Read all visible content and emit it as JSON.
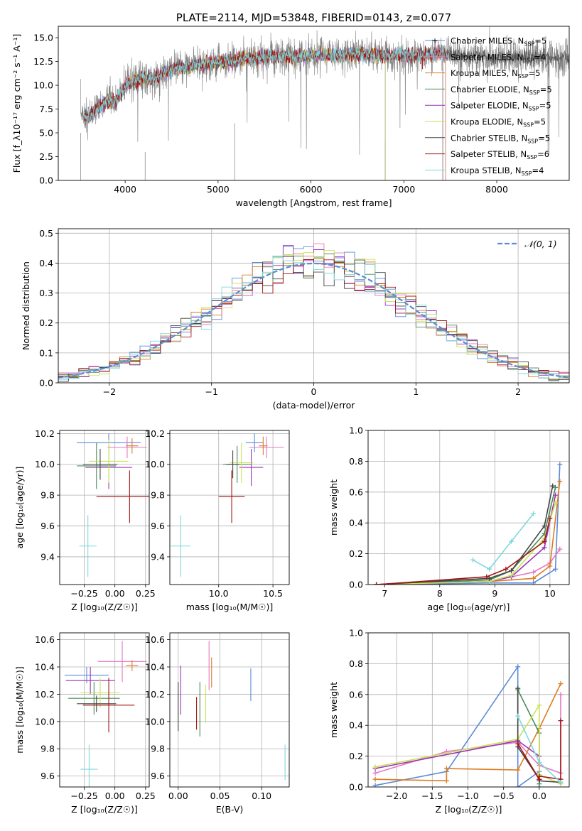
{
  "colors": {
    "Chabrier MILES": "#5b8bd6",
    "Salpeter MILES": "#e377c2",
    "Kroupa MILES": "#dd7c22",
    "Chabrier ELODIE": "#4a8a5a",
    "Salpeter ELODIE": "#9b34b8",
    "Kroupa ELODIE": "#c9e255",
    "Chabrier STELIB": "#444444",
    "Salpeter STELIB": "#a31515",
    "Kroupa STELIB": "#7fd8de",
    "observed": "#808080",
    "normal": "#5b8bd6"
  },
  "chart_data": [
    {
      "id": "spectrum",
      "type": "line",
      "title": "PLATE=2114, MJD=53848, FIBERID=0143, z=0.077",
      "xlabel": "wavelength [Angstrom, rest frame]",
      "ylabel": "Flux [f_λ10⁻¹⁷ erg cm⁻² s⁻¹ A⁻¹]",
      "xlim": [
        3280,
        8780
      ],
      "ylim": [
        0,
        16.2
      ],
      "xticks": [
        "4000",
        "5000",
        "6000",
        "7000",
        "8000"
      ],
      "xtick_values": [
        4000,
        5000,
        6000,
        7000,
        8000
      ],
      "yticks": [
        "0.0",
        "2.5",
        "5.0",
        "7.5",
        "10.0",
        "12.5",
        "15.0"
      ],
      "ytick_values": [
        0,
        2.5,
        5,
        7.5,
        10,
        12.5,
        15
      ],
      "grid": false,
      "legend": "right",
      "continuum": {
        "x": [
          3500,
          3600,
          3700,
          3800,
          3900,
          4000,
          4100,
          4200,
          4300,
          4400,
          4500,
          4700,
          4900,
          5100,
          5300,
          5500,
          5700,
          5900,
          6100,
          6300,
          6500,
          6700,
          6900,
          7100,
          7300,
          7400,
          7600,
          7800,
          8000,
          8200,
          8400,
          8600,
          8780
        ],
        "y": [
          7.3,
          6.6,
          7.5,
          8.2,
          8.4,
          10.0,
          10.5,
          10.8,
          10.6,
          11.2,
          11.7,
          12.0,
          12.3,
          12.5,
          12.8,
          12.9,
          13.0,
          13.1,
          13.2,
          13.2,
          13.3,
          13.2,
          13.2,
          13.2,
          13.2,
          13.3,
          13.2,
          13.0,
          12.9,
          12.9,
          12.9,
          12.9,
          12.9
        ]
      },
      "series": [
        {
          "name": "Chabrier MILES",
          "label_suffix": "=5",
          "marker": "+",
          "xmax": 7450
        },
        {
          "name": "Salpeter MILES",
          "label_suffix": "=4",
          "xmax": 7450
        },
        {
          "name": "Kroupa MILES",
          "label_suffix": "=5",
          "xmax": 7450
        },
        {
          "name": "Chabrier ELODIE",
          "label_suffix": "=5",
          "xmax": 6800
        },
        {
          "name": "Salpeter ELODIE",
          "label_suffix": "=5",
          "xmax": 6800
        },
        {
          "name": "Kroupa ELODIE",
          "label_suffix": "=5",
          "xmax": 6800
        },
        {
          "name": "Chabrier STELIB",
          "label_suffix": "=5",
          "xmax": 8780
        },
        {
          "name": "Salpeter STELIB",
          "label_suffix": "=6",
          "xmax": 7420
        },
        {
          "name": "Kroupa STELIB",
          "label_suffix": "=4",
          "xmax": 7420
        }
      ]
    },
    {
      "id": "residuals",
      "type": "bar",
      "xlabel": "(data-model)/error",
      "ylabel": "Normed distribution",
      "xlim": [
        -2.5,
        2.5
      ],
      "ylim": [
        0,
        0.515
      ],
      "xticks": [
        "−2",
        "−1",
        "0",
        "1",
        "2"
      ],
      "xtick_values": [
        -2,
        -1,
        0,
        1,
        2
      ],
      "yticks": [
        "0.0",
        "0.1",
        "0.2",
        "0.3",
        "0.4",
        "0.5"
      ],
      "ytick_values": [
        0,
        0.1,
        0.2,
        0.3,
        0.4,
        0.5
      ],
      "grid": true,
      "legend": "top-right",
      "normal_label": "𝒩(0, 1)",
      "bin_width": 0.1,
      "bins_start": -2.5
    },
    {
      "id": "age_vs_Z",
      "type": "scatter",
      "xlabel": "Z [log₁₀(Z/Z☉)]",
      "ylabel": "age  [log₁₀(age/yr)]",
      "xlim": [
        -0.45,
        0.28
      ],
      "ylim": [
        9.22,
        10.22
      ],
      "xticks": [
        "−0.25",
        "0.00",
        "0.25"
      ],
      "xtick_values": [
        -0.25,
        0,
        0.25
      ],
      "yticks": [
        "9.4",
        "9.6",
        "9.8",
        "10.0",
        "10.2"
      ],
      "ytick_values": [
        9.4,
        9.6,
        9.8,
        10.0,
        10.2
      ],
      "grid": true,
      "points": [
        {
          "series": "Chabrier MILES",
          "x": -0.05,
          "y": 10.14,
          "xerr": 0.26,
          "yerr": 0.06
        },
        {
          "series": "Salpeter MILES",
          "x": 0.1,
          "y": 10.11,
          "xerr": 0.16,
          "yerr": 0.07
        },
        {
          "series": "Kroupa MILES",
          "x": 0.14,
          "y": 10.12,
          "xerr": 0.05,
          "yerr": 0.05
        },
        {
          "series": "Chabrier ELODIE",
          "x": -0.15,
          "y": 9.99,
          "xerr": 0.16,
          "yerr": 0.15
        },
        {
          "series": "Salpeter ELODIE",
          "x": -0.05,
          "y": 9.98,
          "xerr": 0.19,
          "yerr": 0.14
        },
        {
          "series": "Kroupa ELODIE",
          "x": -0.05,
          "y": 10.02,
          "xerr": 0.16,
          "yerr": 0.14
        },
        {
          "series": "Chabrier STELIB",
          "x": -0.12,
          "y": 10.0,
          "xerr": 0.14,
          "yerr": 0.1
        },
        {
          "series": "Salpeter STELIB",
          "x": 0.12,
          "y": 9.79,
          "xerr": 0.27,
          "yerr": 0.17
        },
        {
          "series": "Kroupa STELIB",
          "x": -0.22,
          "y": 9.47,
          "xerr": 0.07,
          "yerr": 0.2
        }
      ]
    },
    {
      "id": "age_vs_mass",
      "type": "scatter",
      "xlabel": "mass [log₁₀(M/M☉)]",
      "ylabel": "",
      "xlim": [
        9.55,
        10.65
      ],
      "ylim": [
        9.22,
        10.22
      ],
      "xticks": [
        "10.0",
        "10.5"
      ],
      "xtick_values": [
        10.0,
        10.5
      ],
      "yticks": [
        "9.4",
        "9.6",
        "9.8",
        "10.0",
        "10.2"
      ],
      "ytick_values": [
        9.4,
        9.6,
        9.8,
        10.0,
        10.2
      ],
      "grid": true,
      "points": [
        {
          "series": "Chabrier MILES",
          "x": 10.33,
          "y": 10.14,
          "xerr": 0.08,
          "yerr": 0.06
        },
        {
          "series": "Salpeter MILES",
          "x": 10.44,
          "y": 10.11,
          "xerr": 0.16,
          "yerr": 0.07
        },
        {
          "series": "Kroupa MILES",
          "x": 10.41,
          "y": 10.12,
          "xerr": 0.04,
          "yerr": 0.06
        },
        {
          "series": "Chabrier ELODIE",
          "x": 10.17,
          "y": 10.0,
          "xerr": 0.13,
          "yerr": 0.12
        },
        {
          "series": "Salpeter ELODIE",
          "x": 10.3,
          "y": 9.98,
          "xerr": 0.11,
          "yerr": 0.12
        },
        {
          "series": "Kroupa ELODIE",
          "x": 10.21,
          "y": 10.01,
          "xerr": 0.11,
          "yerr": 0.13
        },
        {
          "series": "Chabrier STELIB",
          "x": 10.13,
          "y": 10.0,
          "xerr": 0.06,
          "yerr": 0.09
        },
        {
          "series": "Salpeter STELIB",
          "x": 10.12,
          "y": 9.79,
          "xerr": 0.12,
          "yerr": 0.17
        },
        {
          "series": "Kroupa STELIB",
          "x": 9.65,
          "y": 9.47,
          "xerr": 0.09,
          "yerr": 0.2
        }
      ]
    },
    {
      "id": "mass_weight_vs_age",
      "type": "line",
      "xlabel": "age  [log₁₀(age/yr)]",
      "ylabel": "mass weight",
      "xlim": [
        6.7,
        10.35
      ],
      "ylim": [
        0,
        1.0
      ],
      "xticks": [
        "7",
        "8",
        "9",
        "10"
      ],
      "xtick_values": [
        7,
        8,
        9,
        10
      ],
      "yticks": [
        "0.0",
        "0.2",
        "0.4",
        "0.6",
        "0.8",
        "1.0"
      ],
      "ytick_values": [
        0,
        0.2,
        0.4,
        0.6,
        0.8,
        1.0
      ],
      "grid": true,
      "series": [
        {
          "name": "Chabrier MILES",
          "x": [
            6.85,
            8.9,
            9.7,
            10.1,
            10.18
          ],
          "y": [
            0.0,
            0.01,
            0.01,
            0.1,
            0.78
          ]
        },
        {
          "name": "Salpeter MILES",
          "x": [
            6.85,
            8.9,
            9.7,
            10.0,
            10.18
          ],
          "y": [
            0.0,
            0.02,
            0.08,
            0.14,
            0.23
          ]
        },
        {
          "name": "Kroupa MILES",
          "x": [
            6.85,
            8.9,
            9.7,
            10.0,
            10.18
          ],
          "y": [
            0.0,
            0.02,
            0.04,
            0.12,
            0.67
          ]
        },
        {
          "name": "Chabrier ELODIE",
          "x": [
            6.85,
            8.9,
            9.3,
            9.9,
            10.1
          ],
          "y": [
            0.0,
            0.03,
            0.09,
            0.33,
            0.63
          ]
        },
        {
          "name": "Salpeter ELODIE",
          "x": [
            6.85,
            8.9,
            9.3,
            9.9,
            10.1
          ],
          "y": [
            0.0,
            0.02,
            0.05,
            0.24,
            0.58
          ]
        },
        {
          "name": "Kroupa ELODIE",
          "x": [
            6.85,
            8.9,
            9.3,
            9.9,
            10.1
          ],
          "y": [
            0.0,
            0.02,
            0.06,
            0.3,
            0.53
          ]
        },
        {
          "name": "Chabrier STELIB",
          "x": [
            6.85,
            8.9,
            9.3,
            9.9,
            10.05
          ],
          "y": [
            0.0,
            0.04,
            0.09,
            0.38,
            0.64
          ]
        },
        {
          "name": "Salpeter STELIB",
          "x": [
            6.85,
            8.85,
            9.2,
            9.9,
            10.0
          ],
          "y": [
            0.0,
            0.05,
            0.1,
            0.28,
            0.43
          ]
        },
        {
          "name": "Kroupa STELIB",
          "x": [
            8.6,
            8.9,
            9.3,
            9.7
          ],
          "y": [
            0.16,
            0.1,
            0.28,
            0.46
          ]
        }
      ]
    },
    {
      "id": "mass_vs_Z",
      "type": "scatter",
      "xlabel": "Z [log₁₀(Z/Z☉)]",
      "ylabel": "mass [log₁₀(M/M☉)]",
      "xlim": [
        -0.45,
        0.28
      ],
      "ylim": [
        9.52,
        10.65
      ],
      "xticks": [
        "−0.25",
        "0.00",
        "0.25"
      ],
      "xtick_values": [
        -0.25,
        0,
        0.25
      ],
      "yticks": [
        "9.6",
        "9.8",
        "10.0",
        "10.2",
        "10.4",
        "10.6"
      ],
      "ytick_values": [
        9.6,
        9.8,
        10.0,
        10.2,
        10.4,
        10.6
      ],
      "grid": true,
      "points": [
        {
          "series": "Chabrier MILES",
          "x": -0.23,
          "y": 10.34,
          "xerr": 0.18,
          "yerr": 0.06
        },
        {
          "series": "Salpeter MILES",
          "x": 0.06,
          "y": 10.44,
          "xerr": 0.2,
          "yerr": 0.15
        },
        {
          "series": "Kroupa MILES",
          "x": 0.14,
          "y": 10.41,
          "xerr": 0.05,
          "yerr": 0.04
        },
        {
          "series": "Chabrier ELODIE",
          "x": -0.17,
          "y": 10.17,
          "xerr": 0.21,
          "yerr": 0.12
        },
        {
          "series": "Salpeter ELODIE",
          "x": -0.2,
          "y": 10.3,
          "xerr": 0.2,
          "yerr": 0.1
        },
        {
          "series": "Kroupa ELODIE",
          "x": -0.12,
          "y": 10.21,
          "xerr": 0.16,
          "yerr": 0.11
        },
        {
          "series": "Chabrier STELIB",
          "x": -0.15,
          "y": 10.13,
          "xerr": 0.16,
          "yerr": 0.06
        },
        {
          "series": "Salpeter STELIB",
          "x": -0.05,
          "y": 10.12,
          "xerr": 0.21,
          "yerr": 0.2
        },
        {
          "series": "Kroupa STELIB",
          "x": -0.21,
          "y": 9.65,
          "xerr": 0.07,
          "yerr": 0.18
        }
      ]
    },
    {
      "id": "mass_vs_EBV",
      "type": "scatter",
      "xlabel": "E(B-V)",
      "ylabel": "",
      "xlim": [
        -0.01,
        0.133
      ],
      "ylim": [
        9.52,
        10.65
      ],
      "xticks": [
        "0.00",
        "0.05",
        "0.10"
      ],
      "xtick_values": [
        0,
        0.05,
        0.1
      ],
      "yticks": [
        "9.6",
        "9.8",
        "10.0",
        "10.2",
        "10.4",
        "10.6"
      ],
      "ytick_values": [
        9.6,
        9.8,
        10.0,
        10.2,
        10.4,
        10.6
      ],
      "grid": true,
      "points": [
        {
          "series": "Chabrier MILES",
          "x": 0.087,
          "y": 10.27,
          "xerr": 0,
          "yerr": 0.12
        },
        {
          "series": "Salpeter MILES",
          "x": 0.037,
          "y": 10.41,
          "xerr": 0,
          "yerr": 0.18
        },
        {
          "series": "Kroupa MILES",
          "x": 0.04,
          "y": 10.36,
          "xerr": 0,
          "yerr": 0.11
        },
        {
          "series": "Chabrier ELODIE",
          "x": 0.026,
          "y": 10.09,
          "xerr": 0,
          "yerr": 0.2
        },
        {
          "series": "Salpeter ELODIE",
          "x": 0.003,
          "y": 10.23,
          "xerr": 0,
          "yerr": 0.18
        },
        {
          "series": "Kroupa ELODIE",
          "x": 0.033,
          "y": 10.13,
          "xerr": 0,
          "yerr": 0.14
        },
        {
          "series": "Chabrier STELIB",
          "x": 0.0,
          "y": 10.11,
          "xerr": 0,
          "yerr": 0.18
        },
        {
          "series": "Salpeter STELIB",
          "x": 0.022,
          "y": 10.06,
          "xerr": 0,
          "yerr": 0.12
        },
        {
          "series": "Kroupa STELIB",
          "x": 0.128,
          "y": 9.7,
          "xerr": 0,
          "yerr": 0.13
        }
      ]
    },
    {
      "id": "mass_weight_vs_Z",
      "type": "line",
      "xlabel": "Z [log₁₀(Z/Z☉)]",
      "ylabel": "mass weight",
      "xlim": [
        -2.4,
        0.42
      ],
      "ylim": [
        0,
        1.0
      ],
      "xticks": [
        "−2.0",
        "−1.5",
        "−1.0",
        "−0.5",
        "0.0"
      ],
      "xtick_values": [
        -2,
        -1.5,
        -1,
        -0.5,
        0
      ],
      "yticks": [
        "0.0",
        "0.2",
        "0.4",
        "0.6",
        "0.8",
        "1.0"
      ],
      "ytick_values": [
        0,
        0.2,
        0.4,
        0.6,
        0.8,
        1.0
      ],
      "grid": true,
      "series": [
        {
          "name": "Chabrier MILES",
          "x": [
            -2.3,
            -1.3,
            -0.3,
            -0.3,
            0.0,
            0.0
          ],
          "y": [
            0.01,
            0.1,
            0.78,
            0.0,
            0.1,
            0.0
          ]
        },
        {
          "name": "Salpeter MILES",
          "x": [
            -2.3,
            -1.3,
            -0.3,
            0.0,
            0.3,
            0.3
          ],
          "y": [
            0.09,
            0.23,
            0.29,
            0.14,
            0.09,
            0.6
          ]
        },
        {
          "name": "Kroupa MILES",
          "x": [
            -2.3,
            -1.3,
            -1.3,
            -0.3,
            0.0,
            0.3
          ],
          "y": [
            0.05,
            0.04,
            0.12,
            0.11,
            0.38,
            0.67
          ]
        },
        {
          "name": "Chabrier ELODIE",
          "x": [
            -0.3,
            0.0,
            0.0
          ],
          "y": [
            0.63,
            0.35,
            0.02
          ]
        },
        {
          "name": "Salpeter ELODIE",
          "x": [
            -2.3,
            -0.3,
            0.0,
            0.0
          ],
          "y": [
            0.12,
            0.3,
            0.2,
            0.05
          ]
        },
        {
          "name": "Kroupa ELODIE",
          "x": [
            -2.3,
            -0.3,
            0.0,
            0.0,
            0.3
          ],
          "y": [
            0.13,
            0.31,
            0.53,
            0.08,
            0.02
          ]
        },
        {
          "name": "Chabrier STELIB",
          "x": [
            -0.3,
            -0.3,
            0.0,
            0.0,
            0.3
          ],
          "y": [
            0.64,
            0.26,
            0.05,
            0.04,
            0.03
          ]
        },
        {
          "name": "Salpeter STELIB",
          "x": [
            -0.3,
            0.0,
            0.0,
            0.3,
            0.3
          ],
          "y": [
            0.28,
            0.05,
            0.07,
            0.05,
            0.43
          ]
        },
        {
          "name": "Kroupa STELIB",
          "x": [
            -0.3,
            0.0,
            0.3
          ],
          "y": [
            0.46,
            0.16,
            0.03
          ]
        }
      ]
    }
  ]
}
